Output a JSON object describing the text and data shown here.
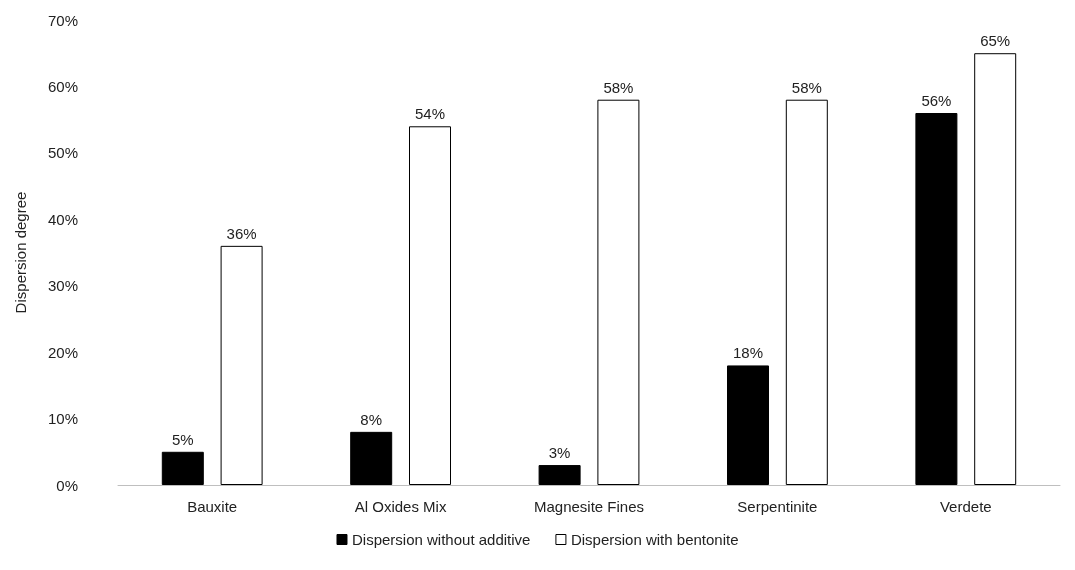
{
  "chart_data": {
    "type": "bar",
    "ylabel": "Dispersion degree",
    "categories": [
      "Bauxite",
      "Al Oxides Mix",
      "Magnesite Fines",
      "Serpentinite",
      "Verdete"
    ],
    "series": [
      {
        "name": "Dispersion without additive",
        "color": "#000000",
        "values": [
          5,
          8,
          3,
          18,
          56
        ],
        "value_labels": [
          "5%",
          "8%",
          "3%",
          "18%",
          "56%"
        ]
      },
      {
        "name": "Dispersion with bentonite",
        "color": "#ffffff",
        "values": [
          36,
          54,
          58,
          58,
          65
        ],
        "value_labels": [
          "36%",
          "54%",
          "58%",
          "58%",
          "65%"
        ]
      }
    ],
    "ylim": [
      0,
      70
    ],
    "yticks": [
      {
        "value": 0,
        "label": "0%"
      },
      {
        "value": 10,
        "label": "10%"
      },
      {
        "value": 20,
        "label": "20%"
      },
      {
        "value": 30,
        "label": "30%"
      },
      {
        "value": 40,
        "label": "40%"
      },
      {
        "value": 50,
        "label": "50%"
      },
      {
        "value": 60,
        "label": "60%"
      },
      {
        "value": 70,
        "label": "70%"
      }
    ],
    "grid": false,
    "legend": "bottom"
  }
}
